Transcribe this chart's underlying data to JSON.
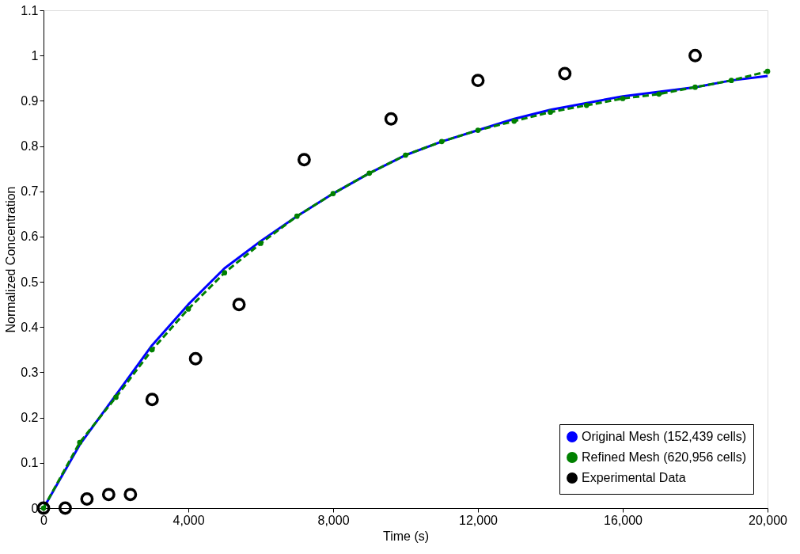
{
  "chart_data": {
    "type": "line",
    "xlabel": "Time (s)",
    "ylabel": "Normalized Concentration",
    "xlim": [
      0,
      20000
    ],
    "ylim": [
      0,
      1.1
    ],
    "xticks": [
      0,
      {
        "value": 4000,
        "label": "4,000"
      },
      {
        "value": 8000,
        "label": "8,000"
      },
      {
        "value": 12000,
        "label": "12,000"
      },
      {
        "value": 16000,
        "label": "16,000"
      },
      {
        "value": 20000,
        "label": "20,000"
      }
    ],
    "yticks": [
      0,
      0.1,
      0.2,
      0.3,
      0.4,
      0.5,
      0.6,
      0.7,
      0.8,
      0.9,
      1,
      1.1
    ],
    "grid": false,
    "legend": "bottom right",
    "series": [
      {
        "name": "Original Mesh (152,439 cells)",
        "color": "#0000ff",
        "line_style": "solid",
        "marker": "none",
        "x": [
          0,
          1000,
          2000,
          3000,
          4000,
          5000,
          6000,
          7000,
          8000,
          9000,
          10000,
          11000,
          12000,
          13000,
          14000,
          15000,
          16000,
          17000,
          18000,
          19000,
          20000
        ],
        "values": [
          0,
          0.14,
          0.25,
          0.36,
          0.45,
          0.53,
          0.59,
          0.645,
          0.695,
          0.74,
          0.78,
          0.81,
          0.835,
          0.86,
          0.88,
          0.895,
          0.91,
          0.92,
          0.93,
          0.945,
          0.955
        ]
      },
      {
        "name": "Refined Mesh (620,956 cells)",
        "color": "#008000",
        "line_style": "dashed",
        "marker": "circle",
        "x": [
          0,
          1000,
          2000,
          3000,
          4000,
          5000,
          6000,
          7000,
          8000,
          9000,
          10000,
          11000,
          12000,
          13000,
          14000,
          15000,
          16000,
          17000,
          18000,
          19000,
          20000
        ],
        "values": [
          0,
          0.145,
          0.245,
          0.35,
          0.44,
          0.52,
          0.585,
          0.645,
          0.695,
          0.74,
          0.78,
          0.81,
          0.835,
          0.855,
          0.875,
          0.89,
          0.905,
          0.915,
          0.93,
          0.945,
          0.965
        ]
      },
      {
        "name": "Experimental Data",
        "type": "scatter",
        "color": "#000000",
        "marker": "circle",
        "x": [
          0,
          600,
          1200,
          1800,
          2400,
          3000,
          4200,
          5400,
          7200,
          9600,
          12000,
          14400,
          18000
        ],
        "values": [
          0,
          0,
          0.02,
          0.03,
          0.03,
          0.24,
          0.33,
          0.45,
          0.77,
          0.86,
          0.945,
          0.96,
          1.0
        ]
      }
    ]
  }
}
